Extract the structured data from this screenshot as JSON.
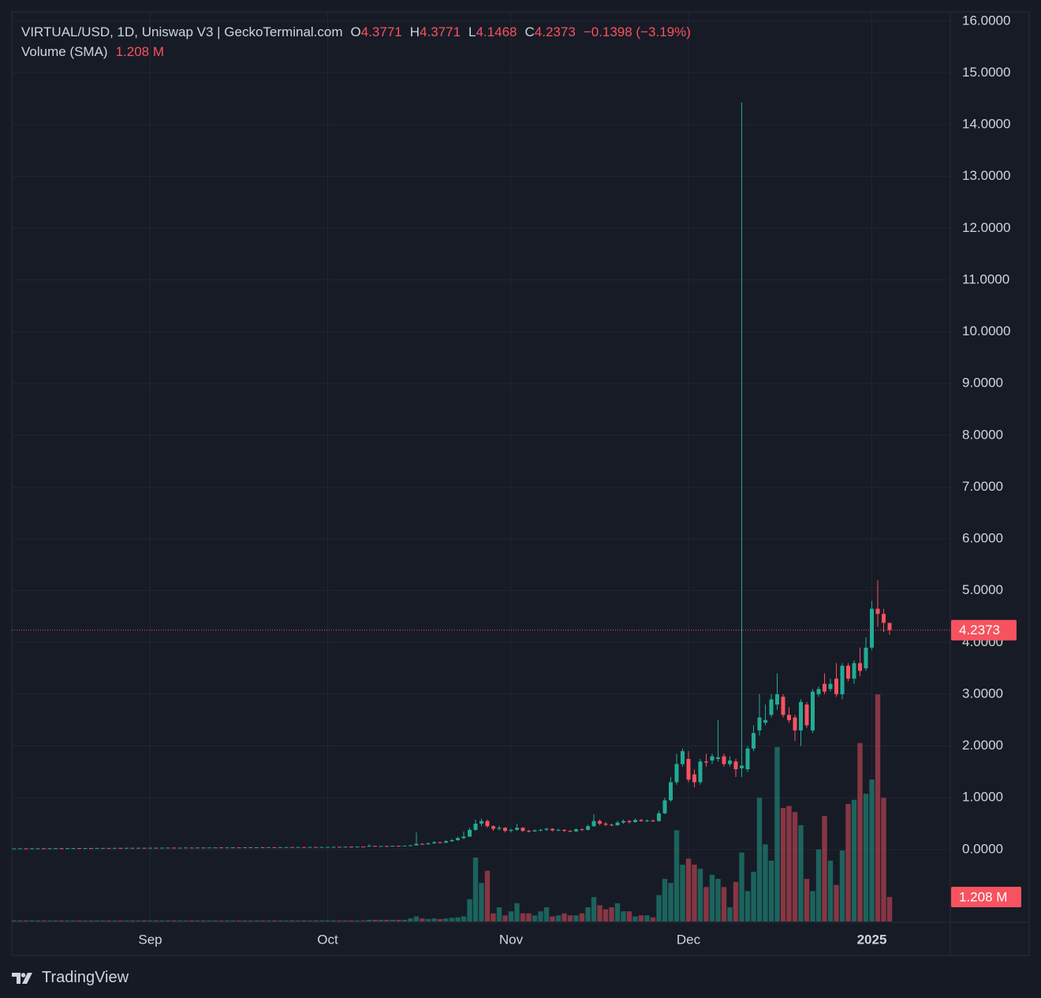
{
  "chart_data": {
    "type": "candlestick",
    "header": {
      "symbol": "VIRTUAL/USD, 1D, Uniswap V3 | GeckoTerminal.com",
      "o_label": "O",
      "o": "4.3771",
      "h_label": "H",
      "h": "4.3771",
      "l_label": "L",
      "l": "4.1468",
      "c_label": "C",
      "c": "4.2373",
      "change": "−0.1398 (−3.19%)",
      "volume_title": "Volume (SMA)",
      "volume": "1.208 M"
    },
    "categories": [
      null,
      null,
      null,
      null,
      null,
      null,
      null,
      null,
      null,
      null,
      null,
      null,
      null,
      null,
      null,
      null,
      null,
      null,
      null,
      null,
      null,
      null,
      null,
      "Sep",
      null,
      null,
      null,
      null,
      null,
      null,
      null,
      null,
      null,
      null,
      null,
      null,
      null,
      null,
      null,
      null,
      null,
      null,
      null,
      null,
      null,
      null,
      null,
      null,
      null,
      null,
      null,
      null,
      null,
      "Oct",
      null,
      null,
      null,
      null,
      null,
      null,
      null,
      null,
      null,
      null,
      null,
      null,
      null,
      null,
      null,
      null,
      null,
      null,
      null,
      null,
      null,
      null,
      null,
      null,
      null,
      null,
      null,
      null,
      null,
      null,
      "Nov",
      null,
      null,
      null,
      null,
      null,
      null,
      null,
      null,
      null,
      null,
      null,
      null,
      null,
      null,
      null,
      null,
      null,
      null,
      null,
      null,
      null,
      null,
      null,
      null,
      null,
      null,
      null,
      null,
      null,
      "Dec",
      null,
      null,
      null,
      null,
      null,
      null,
      null,
      null,
      null,
      null,
      null,
      null,
      null,
      null,
      null,
      null,
      null,
      null,
      null,
      null,
      null,
      null,
      null,
      null,
      null,
      null,
      null,
      null,
      null,
      null,
      "2025",
      null,
      null,
      null
    ],
    "open": [
      0.019,
      0.02,
      0.021,
      0.02,
      0.022,
      0.023,
      0.022,
      0.024,
      0.025,
      0.024,
      0.026,
      0.027,
      0.026,
      0.028,
      0.027,
      0.029,
      0.03,
      0.029,
      0.031,
      0.03,
      0.032,
      0.031,
      0.033,
      0.032,
      0.034,
      0.033,
      0.035,
      0.036,
      0.034,
      0.035,
      0.037,
      0.036,
      0.038,
      0.037,
      0.039,
      0.04,
      0.038,
      0.04,
      0.041,
      0.039,
      0.042,
      0.041,
      0.043,
      0.042,
      0.044,
      0.043,
      0.045,
      0.046,
      0.044,
      0.047,
      0.046,
      0.048,
      0.047,
      0.049,
      0.05,
      0.052,
      0.051,
      0.055,
      0.053,
      0.058,
      0.056,
      0.07,
      0.065,
      0.068,
      0.066,
      0.072,
      0.07,
      0.075,
      0.08,
      0.11,
      0.1,
      0.12,
      0.14,
      0.13,
      0.16,
      0.18,
      0.22,
      0.25,
      0.38,
      0.5,
      0.55,
      0.45,
      0.4,
      0.42,
      0.36,
      0.38,
      0.42,
      0.36,
      0.35,
      0.37,
      0.38,
      0.4,
      0.37,
      0.38,
      0.36,
      0.35,
      0.39,
      0.38,
      0.45,
      0.55,
      0.5,
      0.48,
      0.47,
      0.52,
      0.55,
      0.53,
      0.57,
      0.55,
      0.56,
      0.55,
      0.7,
      0.95,
      1.3,
      1.65,
      1.75,
      1.45,
      1.3,
      1.7,
      1.72,
      1.75,
      1.8,
      1.65,
      1.7,
      1.57,
      1.55,
      1.95,
      2.3,
      2.45,
      2.6,
      2.8,
      2.95,
      2.6,
      2.55,
      2.3,
      2.8,
      2.3,
      3.0,
      3.2,
      3.1,
      3.3,
      3.0,
      3.55,
      3.3,
      3.6,
      3.5,
      3.9,
      4.65,
      4.55,
      4.3771
    ],
    "high": [
      0.02,
      0.021,
      0.021,
      0.022,
      0.023,
      0.023,
      0.024,
      0.025,
      0.025,
      0.026,
      0.027,
      0.027,
      0.028,
      0.028,
      0.029,
      0.03,
      0.03,
      0.031,
      0.031,
      0.032,
      0.032,
      0.033,
      0.033,
      0.034,
      0.034,
      0.035,
      0.036,
      0.036,
      0.035,
      0.037,
      0.037,
      0.038,
      0.038,
      0.039,
      0.04,
      0.04,
      0.04,
      0.041,
      0.041,
      0.042,
      0.042,
      0.043,
      0.043,
      0.044,
      0.044,
      0.045,
      0.046,
      0.046,
      0.047,
      0.047,
      0.048,
      0.048,
      0.049,
      0.05,
      0.052,
      0.052,
      0.055,
      0.055,
      0.058,
      0.058,
      0.1,
      0.07,
      0.068,
      0.068,
      0.072,
      0.072,
      0.075,
      0.09,
      0.33,
      0.12,
      0.14,
      0.16,
      0.15,
      0.18,
      0.2,
      0.25,
      0.35,
      0.42,
      0.58,
      0.6,
      0.58,
      0.47,
      0.46,
      0.43,
      0.4,
      0.5,
      0.43,
      0.38,
      0.39,
      0.4,
      0.42,
      0.41,
      0.4,
      0.39,
      0.37,
      0.41,
      0.41,
      0.48,
      0.68,
      0.58,
      0.53,
      0.5,
      0.55,
      0.58,
      0.57,
      0.6,
      0.59,
      0.58,
      0.58,
      0.75,
      1.0,
      1.4,
      1.85,
      1.95,
      1.9,
      1.55,
      1.75,
      1.85,
      1.85,
      2.5,
      1.85,
      1.8,
      1.75,
      14.43,
      2.0,
      2.4,
      3.0,
      2.8,
      3.0,
      3.4,
      3.0,
      2.75,
      2.6,
      2.9,
      2.85,
      3.1,
      3.15,
      3.4,
      3.3,
      3.6,
      3.6,
      3.6,
      3.65,
      3.9,
      4.1,
      4.8,
      5.2,
      4.65,
      4.3771
    ],
    "low": [
      0.019,
      0.02,
      0.02,
      0.02,
      0.022,
      0.022,
      0.022,
      0.024,
      0.024,
      0.024,
      0.026,
      0.026,
      0.026,
      0.027,
      0.027,
      0.029,
      0.029,
      0.029,
      0.03,
      0.03,
      0.031,
      0.031,
      0.032,
      0.032,
      0.033,
      0.033,
      0.035,
      0.034,
      0.034,
      0.035,
      0.036,
      0.036,
      0.037,
      0.037,
      0.039,
      0.038,
      0.038,
      0.04,
      0.039,
      0.039,
      0.041,
      0.041,
      0.042,
      0.042,
      0.043,
      0.043,
      0.045,
      0.044,
      0.044,
      0.046,
      0.046,
      0.047,
      0.047,
      0.049,
      0.05,
      0.051,
      0.051,
      0.053,
      0.053,
      0.056,
      0.056,
      0.065,
      0.065,
      0.066,
      0.066,
      0.07,
      0.07,
      0.07,
      0.08,
      0.09,
      0.1,
      0.11,
      0.12,
      0.13,
      0.15,
      0.17,
      0.2,
      0.24,
      0.36,
      0.45,
      0.42,
      0.36,
      0.37,
      0.33,
      0.33,
      0.36,
      0.34,
      0.33,
      0.34,
      0.35,
      0.36,
      0.35,
      0.35,
      0.34,
      0.33,
      0.34,
      0.36,
      0.37,
      0.44,
      0.47,
      0.45,
      0.45,
      0.46,
      0.5,
      0.5,
      0.52,
      0.53,
      0.53,
      0.53,
      0.54,
      0.68,
      0.92,
      1.25,
      1.6,
      1.3,
      1.2,
      1.25,
      1.6,
      1.65,
      1.7,
      1.6,
      1.6,
      1.4,
      1.4,
      1.5,
      1.9,
      2.2,
      2.4,
      2.55,
      2.7,
      2.55,
      2.45,
      2.1,
      2.0,
      2.35,
      2.25,
      2.95,
      3.0,
      3.05,
      2.95,
      2.9,
      3.25,
      3.2,
      3.35,
      3.45,
      3.85,
      4.3,
      4.2,
      4.1468
    ],
    "close": [
      0.02,
      0.021,
      0.02,
      0.022,
      0.023,
      0.022,
      0.024,
      0.025,
      0.024,
      0.026,
      0.027,
      0.026,
      0.028,
      0.027,
      0.029,
      0.03,
      0.029,
      0.031,
      0.03,
      0.032,
      0.031,
      0.033,
      0.032,
      0.034,
      0.033,
      0.035,
      0.036,
      0.034,
      0.035,
      0.037,
      0.036,
      0.038,
      0.037,
      0.039,
      0.04,
      0.038,
      0.04,
      0.041,
      0.039,
      0.042,
      0.041,
      0.043,
      0.042,
      0.044,
      0.043,
      0.045,
      0.046,
      0.044,
      0.047,
      0.046,
      0.048,
      0.047,
      0.049,
      0.05,
      0.052,
      0.051,
      0.055,
      0.053,
      0.058,
      0.056,
      0.07,
      0.065,
      0.068,
      0.066,
      0.072,
      0.07,
      0.075,
      0.08,
      0.11,
      0.1,
      0.12,
      0.14,
      0.13,
      0.16,
      0.18,
      0.22,
      0.25,
      0.38,
      0.5,
      0.55,
      0.45,
      0.4,
      0.42,
      0.36,
      0.38,
      0.42,
      0.36,
      0.35,
      0.37,
      0.38,
      0.4,
      0.37,
      0.38,
      0.36,
      0.35,
      0.39,
      0.38,
      0.45,
      0.55,
      0.5,
      0.48,
      0.47,
      0.52,
      0.55,
      0.53,
      0.57,
      0.55,
      0.56,
      0.55,
      0.7,
      0.95,
      1.3,
      1.65,
      1.9,
      1.35,
      1.3,
      1.7,
      1.68,
      1.8,
      1.78,
      1.65,
      1.72,
      1.55,
      1.62,
      1.95,
      2.25,
      2.55,
      2.5,
      2.9,
      3.0,
      2.6,
      2.5,
      2.3,
      2.85,
      2.4,
      3.05,
      3.1,
      3.05,
      3.2,
      3.0,
      3.55,
      3.3,
      3.6,
      3.45,
      3.9,
      4.65,
      4.55,
      4.3771,
      4.2373
    ],
    "volume": [
      0.05,
      0.05,
      0.05,
      0.05,
      0.05,
      0.05,
      0.05,
      0.05,
      0.05,
      0.05,
      0.05,
      0.05,
      0.05,
      0.05,
      0.05,
      0.05,
      0.05,
      0.05,
      0.05,
      0.05,
      0.05,
      0.05,
      0.05,
      0.05,
      0.05,
      0.05,
      0.05,
      0.05,
      0.05,
      0.05,
      0.05,
      0.05,
      0.05,
      0.05,
      0.05,
      0.05,
      0.05,
      0.05,
      0.05,
      0.05,
      0.05,
      0.05,
      0.05,
      0.05,
      0.05,
      0.05,
      0.05,
      0.05,
      0.05,
      0.05,
      0.05,
      0.05,
      0.05,
      0.05,
      0.05,
      0.05,
      0.05,
      0.05,
      0.05,
      0.05,
      0.08,
      0.08,
      0.08,
      0.08,
      0.08,
      0.08,
      0.08,
      0.15,
      0.25,
      0.15,
      0.12,
      0.15,
      0.12,
      0.15,
      0.18,
      0.2,
      0.25,
      1.1,
      3.15,
      1.9,
      2.5,
      0.4,
      0.7,
      0.3,
      0.5,
      0.9,
      0.4,
      0.4,
      0.3,
      0.5,
      0.7,
      0.25,
      0.3,
      0.4,
      0.3,
      0.3,
      0.4,
      0.7,
      1.2,
      0.8,
      0.6,
      0.7,
      0.9,
      0.5,
      0.5,
      0.25,
      0.3,
      0.3,
      0.2,
      1.3,
      2.1,
      1.9,
      4.5,
      2.8,
      3.1,
      2.8,
      2.6,
      1.7,
      2.3,
      2.1,
      1.7,
      0.7,
      1.95,
      3.4,
      1.5,
      2.45,
      6.1,
      3.8,
      3.0,
      8.6,
      5.6,
      5.7,
      5.4,
      4.75,
      2.1,
      1.5,
      3.55,
      5.2,
      3.0,
      1.8,
      3.5,
      5.8,
      6.0,
      8.8,
      6.3,
      7.0,
      11.2,
      6.1,
      1.208
    ],
    "up_color": "#22ab94",
    "down_color": "#f7525f",
    "ylim": [
      -1.39,
      16.18
    ],
    "yticks": [
      {
        "value": 0,
        "label": "0.0000"
      },
      {
        "value": 1,
        "label": "1.0000"
      },
      {
        "value": 2,
        "label": "2.0000"
      },
      {
        "value": 3,
        "label": "3.0000"
      },
      {
        "value": 4,
        "label": "4.0000"
      },
      {
        "value": 5,
        "label": "5.0000"
      },
      {
        "value": 6,
        "label": "6.0000"
      },
      {
        "value": 7,
        "label": "7.0000"
      },
      {
        "value": 8,
        "label": "8.0000"
      },
      {
        "value": 9,
        "label": "9.0000"
      },
      {
        "value": 10,
        "label": "10.0000"
      },
      {
        "value": 11,
        "label": "11.0000"
      },
      {
        "value": 12,
        "label": "12.0000"
      },
      {
        "value": 13,
        "label": "13.0000"
      },
      {
        "value": 14,
        "label": "14.0000"
      },
      {
        "value": 15,
        "label": "15.0000"
      },
      {
        "value": 16,
        "label": "16.0000"
      }
    ],
    "grid": true,
    "last_price": 4.2373,
    "volume_label": "1.208 M"
  },
  "branding": "TradingView"
}
